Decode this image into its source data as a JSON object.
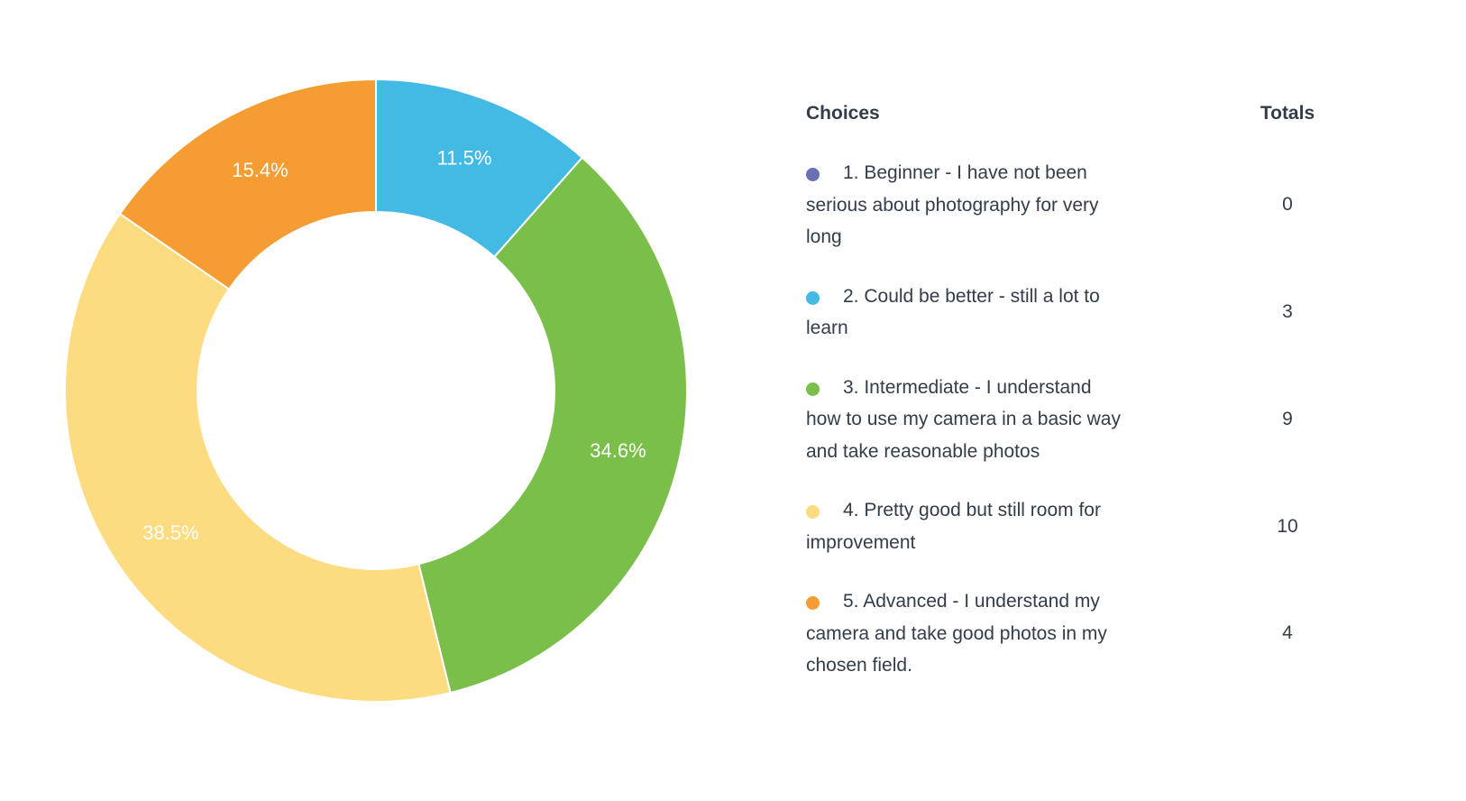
{
  "chart_data": {
    "type": "pie",
    "variant": "donut",
    "title": "",
    "headers": {
      "choices": "Choices",
      "totals": "Totals"
    },
    "slices": [
      {
        "label": "1. Beginner - I have not been serious about photography for very long",
        "value": 0,
        "percent_label": "0%",
        "color": "#6b6fb4"
      },
      {
        "label": "2. Could be better - still a lot to learn",
        "value": 3,
        "percent_label": "11.5%",
        "color": "#43bae3"
      },
      {
        "label": "3. Intermediate - I understand how to use my camera in a basic way and take reasonable photos",
        "value": 9,
        "percent_label": "34.6%",
        "color": "#7bbf4b"
      },
      {
        "label": "4. Pretty good but still room for improvement",
        "value": 10,
        "percent_label": "38.5%",
        "color": "#fddb80"
      },
      {
        "label": "5. Advanced - I understand my camera and take good photos in my chosen field.",
        "value": 4,
        "percent_label": "15.4%",
        "color": "#f59c33"
      }
    ],
    "legend_position": "right"
  }
}
